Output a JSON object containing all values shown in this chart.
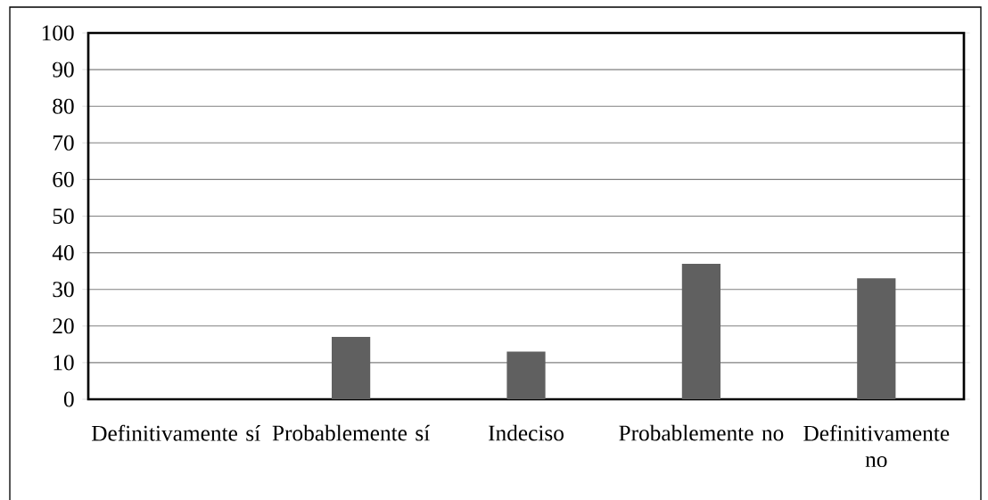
{
  "chart_data": {
    "type": "bar",
    "categories": [
      "Definitivamente sí",
      "Probablemente sí",
      "Indeciso",
      "Probablemente no",
      "Definitivamente no"
    ],
    "values": [
      0,
      17,
      13,
      37,
      33
    ],
    "color": "#606060",
    "ylim": [
      0,
      100
    ],
    "yticks": [
      0,
      10,
      20,
      30,
      40,
      50,
      60,
      70,
      80,
      90,
      100
    ],
    "grid": "y"
  }
}
